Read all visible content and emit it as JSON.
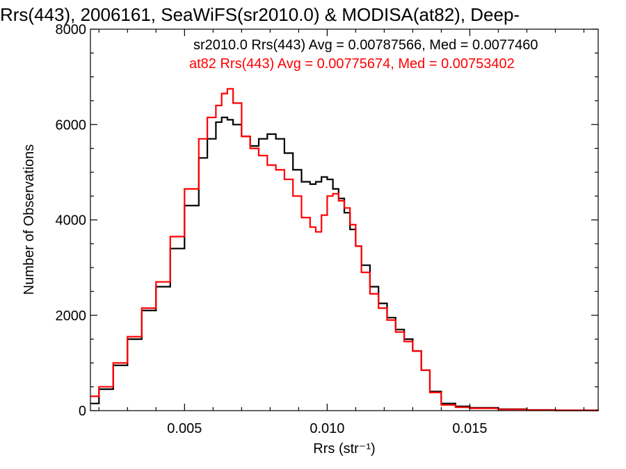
{
  "colors": {
    "background": "#ffffff",
    "axes": "#000000",
    "sr2010_series": "#000000",
    "at82_series": "#ff0000"
  },
  "chart_data": {
    "type": "line",
    "style": "histogram-step",
    "title": "Rrs(443), 2006161, SeaWiFS(sr2010.0) & MODISA(at82), Deep-",
    "xlabel": "Rrs (str⁻¹)",
    "ylabel": "Number of Observations",
    "xlim": [
      0.0017,
      0.0195
    ],
    "ylim": [
      0,
      8000
    ],
    "xticks": [
      0.005,
      0.01,
      0.015
    ],
    "xtick_labels": [
      "0.005",
      "0.010",
      "0.015"
    ],
    "yticks": [
      0,
      2000,
      4000,
      6000,
      8000
    ],
    "ytick_labels": [
      "0",
      "2000",
      "4000",
      "6000",
      "8000"
    ],
    "grid": false,
    "legend_placement": "top-right",
    "annotations": [
      {
        "text": "sr2010.0 Rrs(443) Avg = 0.00787566, Med = 0.0077460",
        "color": "#000000"
      },
      {
        "text": "at82 Rrs(443) Avg = 0.00775674, Med = 0.00753402",
        "color": "#ff0000"
      }
    ],
    "x": [
      0.0017,
      0.002,
      0.0025,
      0.003,
      0.0035,
      0.004,
      0.0045,
      0.005,
      0.0055,
      0.0058,
      0.0061,
      0.0063,
      0.0065,
      0.0067,
      0.007,
      0.0073,
      0.0076,
      0.0079,
      0.0082,
      0.0085,
      0.0088,
      0.0091,
      0.0094,
      0.0096,
      0.0098,
      0.01,
      0.0102,
      0.0104,
      0.0106,
      0.0108,
      0.011,
      0.0112,
      0.0115,
      0.0118,
      0.0121,
      0.0124,
      0.0127,
      0.013,
      0.0133,
      0.0136,
      0.014,
      0.0145,
      0.015,
      0.016,
      0.017,
      0.018,
      0.0195
    ],
    "series": [
      {
        "name": "sr2010.0",
        "color": "#000000",
        "values": [
          150,
          450,
          950,
          1500,
          2100,
          2600,
          3400,
          4300,
          5300,
          5700,
          6050,
          6150,
          6100,
          6000,
          5750,
          5550,
          5700,
          5800,
          5700,
          5400,
          5050,
          4800,
          4750,
          4800,
          4900,
          4850,
          4650,
          4450,
          4150,
          3800,
          3450,
          3050,
          2600,
          2250,
          1950,
          1700,
          1500,
          1250,
          850,
          400,
          150,
          90,
          60,
          30,
          15,
          8,
          5
        ]
      },
      {
        "name": "at82",
        "color": "#ff0000",
        "values": [
          300,
          500,
          1000,
          1550,
          2150,
          2700,
          3650,
          4650,
          5700,
          6150,
          6400,
          6650,
          6750,
          6450,
          5750,
          5500,
          5350,
          5150,
          5050,
          4850,
          4500,
          4050,
          3850,
          3750,
          4100,
          4500,
          4550,
          4400,
          4250,
          3900,
          3450,
          2900,
          2450,
          2150,
          1900,
          1650,
          1450,
          1250,
          850,
          380,
          120,
          70,
          50,
          25,
          12,
          6,
          4
        ]
      }
    ]
  }
}
